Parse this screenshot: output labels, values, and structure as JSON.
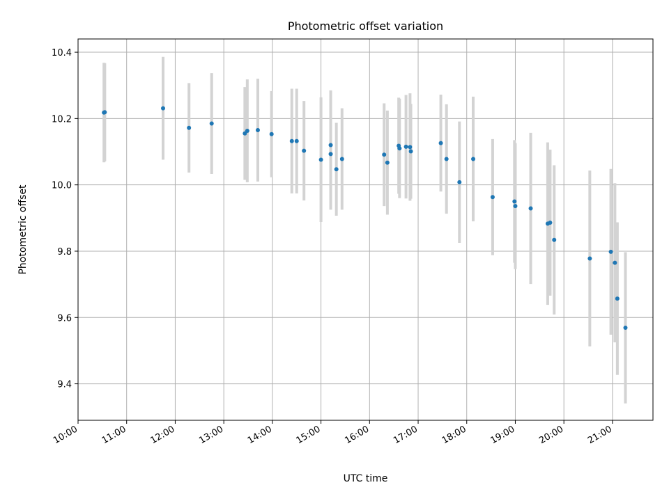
{
  "chart_data": {
    "type": "scatter",
    "title": "Photometric offset variation",
    "xlabel": "UTC time",
    "ylabel": "Photometric offset",
    "xlim": [
      "10:00",
      "21:50"
    ],
    "ylim": [
      9.29,
      10.44
    ],
    "grid": true,
    "x_ticks": [
      "10:00",
      "11:00",
      "12:00",
      "13:00",
      "14:00",
      "15:00",
      "16:00",
      "17:00",
      "18:00",
      "19:00",
      "20:00",
      "21:00"
    ],
    "y_ticks": [
      9.4,
      9.6,
      9.8,
      10.0,
      10.2,
      10.4
    ],
    "point_color": "#1f77b4",
    "errorbar_color": "#d3d3d3",
    "points": [
      {
        "t": "10:32",
        "y": 10.218,
        "err": 0.15
      },
      {
        "t": "10:33",
        "y": 10.219,
        "err": 0.148
      },
      {
        "t": "11:45",
        "y": 10.231,
        "err": 0.155
      },
      {
        "t": "12:17",
        "y": 10.172,
        "err": 0.135
      },
      {
        "t": "12:45",
        "y": 10.185,
        "err": 0.152
      },
      {
        "t": "13:26",
        "y": 10.155,
        "err": 0.14
      },
      {
        "t": "13:29",
        "y": 10.163,
        "err": 0.155
      },
      {
        "t": "13:42",
        "y": 10.165,
        "err": 0.155
      },
      {
        "t": "13:59",
        "y": 10.153,
        "err": 0.13
      },
      {
        "t": "14:24",
        "y": 10.132,
        "err": 0.158
      },
      {
        "t": "14:30",
        "y": 10.132,
        "err": 0.158
      },
      {
        "t": "14:39",
        "y": 10.103,
        "err": 0.15
      },
      {
        "t": "15:00",
        "y": 10.076,
        "err": 0.188
      },
      {
        "t": "15:12",
        "y": 10.093,
        "err": 0.168
      },
      {
        "t": "15:12",
        "y": 10.12,
        "err": 0.165
      },
      {
        "t": "15:19",
        "y": 10.047,
        "err": 0.14
      },
      {
        "t": "15:26",
        "y": 10.078,
        "err": 0.153
      },
      {
        "t": "16:18",
        "y": 10.091,
        "err": 0.155
      },
      {
        "t": "16:22",
        "y": 10.067,
        "err": 0.157
      },
      {
        "t": "16:36",
        "y": 10.118,
        "err": 0.145
      },
      {
        "t": "16:37",
        "y": 10.11,
        "err": 0.15
      },
      {
        "t": "16:45",
        "y": 10.115,
        "err": 0.156
      },
      {
        "t": "16:50",
        "y": 10.114,
        "err": 0.162
      },
      {
        "t": "16:51",
        "y": 10.101,
        "err": 0.143
      },
      {
        "t": "17:28",
        "y": 10.126,
        "err": 0.146
      },
      {
        "t": "17:35",
        "y": 10.078,
        "err": 0.165
      },
      {
        "t": "17:51",
        "y": 10.008,
        "err": 0.183
      },
      {
        "t": "18:08",
        "y": 10.078,
        "err": 0.188
      },
      {
        "t": "18:32",
        "y": 9.963,
        "err": 0.175
      },
      {
        "t": "18:59",
        "y": 9.95,
        "err": 0.185
      },
      {
        "t": "19:00",
        "y": 9.936,
        "err": 0.19
      },
      {
        "t": "19:19",
        "y": 9.929,
        "err": 0.228
      },
      {
        "t": "19:40",
        "y": 9.883,
        "err": 0.245
      },
      {
        "t": "19:43",
        "y": 9.886,
        "err": 0.22
      },
      {
        "t": "19:48",
        "y": 9.834,
        "err": 0.225
      },
      {
        "t": "20:32",
        "y": 9.778,
        "err": 0.265
      },
      {
        "t": "20:58",
        "y": 9.798,
        "err": 0.25
      },
      {
        "t": "21:03",
        "y": 9.765,
        "err": 0.24
      },
      {
        "t": "21:06",
        "y": 9.657,
        "err": 0.23
      },
      {
        "t": "21:16",
        "y": 9.569,
        "err": 0.228
      }
    ]
  }
}
